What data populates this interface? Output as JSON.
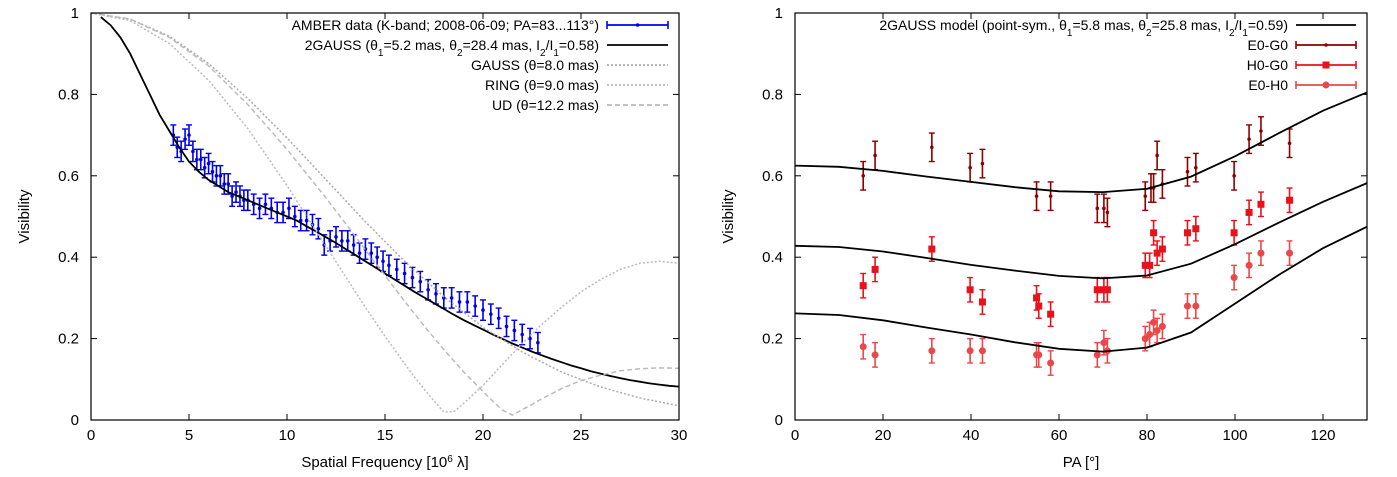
{
  "chart_data": [
    {
      "type": "scatter",
      "xlabel_main": "Spatial Frequency [10",
      "xlabel_sup": "6",
      "xlabel_rest": " λ]",
      "ylabel": "Visibility",
      "xlim": [
        0,
        30
      ],
      "ylim": [
        0,
        1
      ],
      "xticks": [
        0,
        5,
        10,
        15,
        20,
        25,
        30
      ],
      "yticks": [
        0,
        0.2,
        0.4,
        0.6,
        0.8,
        1
      ],
      "ytick_labels": [
        "0",
        "0.2",
        "0.4",
        "0.6",
        "0.8",
        "1"
      ],
      "legend_position": "top-right",
      "legend": [
        {
          "label": "AMBER data (K-band; 2008-06-09; PA=83...113°)",
          "color": "#0000ee",
          "style": "errorbar"
        },
        {
          "label": "2GAUSS (θ1=5.2 mas, θ2=28.4 mas, I2/I1=0.58)",
          "color": "#000000",
          "style": "solid"
        },
        {
          "label": "GAUSS (θ=8.0 mas)",
          "color": "#aaaaaa",
          "style": "dotted"
        },
        {
          "label": "RING (θ=9.0 mas)",
          "color": "#bbbbbb",
          "style": "dotted"
        },
        {
          "label": "UD (θ=12.2 mas)",
          "color": "#bbbbbb",
          "style": "dashed"
        }
      ],
      "series": [
        {
          "name": "AMBER data (K-band; 2008-06-09; PA=83...113°)",
          "x": [
            4.2,
            4.4,
            4.6,
            4.8,
            5.0,
            5.2,
            5.4,
            5.6,
            5.8,
            6.0,
            6.2,
            6.4,
            6.6,
            6.8,
            7.0,
            7.2,
            7.4,
            7.6,
            7.8,
            8.0,
            8.3,
            8.6,
            8.9,
            9.2,
            9.5,
            9.8,
            10.1,
            10.4,
            10.7,
            11.0,
            11.3,
            11.6,
            11.9,
            12.2,
            12.5,
            12.8,
            13.1,
            13.4,
            13.7,
            14.0,
            14.3,
            14.6,
            14.9,
            15.2,
            15.6,
            16.0,
            16.4,
            16.8,
            17.2,
            17.6,
            18.0,
            18.4,
            18.8,
            19.2,
            19.6,
            20.0,
            20.4,
            20.8,
            21.2,
            21.6,
            22.0,
            22.4,
            22.8
          ],
          "y": [
            0.7,
            0.67,
            0.66,
            0.69,
            0.7,
            0.66,
            0.64,
            0.64,
            0.62,
            0.63,
            0.61,
            0.6,
            0.6,
            0.58,
            0.58,
            0.55,
            0.56,
            0.55,
            0.54,
            0.54,
            0.53,
            0.52,
            0.53,
            0.52,
            0.51,
            0.51,
            0.52,
            0.5,
            0.49,
            0.49,
            0.48,
            0.47,
            0.43,
            0.44,
            0.45,
            0.44,
            0.44,
            0.43,
            0.41,
            0.42,
            0.41,
            0.4,
            0.39,
            0.38,
            0.37,
            0.36,
            0.35,
            0.34,
            0.32,
            0.31,
            0.3,
            0.3,
            0.29,
            0.29,
            0.28,
            0.27,
            0.26,
            0.25,
            0.23,
            0.22,
            0.21,
            0.2,
            0.19
          ],
          "err": 0.025,
          "color": "#0000ee"
        },
        {
          "name": "2GAUSS (θ1=5.2 mas, θ2=28.4 mas, I2/I1=0.58)",
          "x": [
            0.5,
            1,
            1.5,
            2,
            2.5,
            3,
            3.5,
            4,
            4.5,
            5,
            5.5,
            6,
            6.5,
            7,
            7.5,
            8,
            8.5,
            9,
            9.5,
            10,
            10.5,
            11,
            11.5,
            12,
            12.5,
            13,
            13.5,
            14,
            14.5,
            15,
            15.5,
            16,
            16.5,
            17,
            17.5,
            18,
            18.5,
            19,
            19.5,
            20,
            20.5,
            21,
            21.5,
            22,
            22.5,
            23,
            23.5,
            24,
            24.5,
            25,
            25.5,
            26,
            26.5,
            27,
            27.5,
            28,
            28.5,
            29,
            29.5,
            30
          ],
          "y": [
            0.99,
            0.97,
            0.94,
            0.9,
            0.85,
            0.8,
            0.75,
            0.71,
            0.67,
            0.635,
            0.61,
            0.59,
            0.575,
            0.56,
            0.55,
            0.54,
            0.53,
            0.52,
            0.51,
            0.5,
            0.49,
            0.476,
            0.463,
            0.449,
            0.435,
            0.42,
            0.405,
            0.39,
            0.375,
            0.36,
            0.345,
            0.33,
            0.315,
            0.301,
            0.287,
            0.273,
            0.259,
            0.246,
            0.234,
            0.222,
            0.21,
            0.199,
            0.188,
            0.178,
            0.168,
            0.159,
            0.15,
            0.142,
            0.134,
            0.127,
            0.12,
            0.114,
            0.108,
            0.103,
            0.098,
            0.094,
            0.09,
            0.087,
            0.084,
            0.082
          ],
          "color": "#000000"
        },
        {
          "name": "GAUSS (θ=8.0 mas)",
          "x": [
            0,
            2,
            4,
            6,
            8,
            10,
            12,
            14,
            16,
            18,
            20,
            22,
            24,
            26,
            28,
            30
          ],
          "y": [
            1.0,
            0.985,
            0.943,
            0.876,
            0.79,
            0.693,
            0.59,
            0.487,
            0.39,
            0.303,
            0.228,
            0.167,
            0.118,
            0.081,
            0.054,
            0.035
          ],
          "color": "#aaaaaa"
        },
        {
          "name": "RING (θ=9.0 mas)",
          "x": [
            0,
            2,
            4,
            6,
            8,
            10,
            12,
            14,
            15,
            16,
            16.5,
            17,
            17.3,
            17.6,
            18,
            18.5,
            19,
            20,
            21,
            22,
            23,
            24,
            25,
            26,
            27,
            28,
            29,
            30
          ],
          "y": [
            1.0,
            0.981,
            0.925,
            0.835,
            0.716,
            0.576,
            0.426,
            0.277,
            0.206,
            0.138,
            0.106,
            0.076,
            0.058,
            0.041,
            0.02,
            0.02,
            0.04,
            0.085,
            0.137,
            0.188,
            0.235,
            0.277,
            0.315,
            0.345,
            0.37,
            0.385,
            0.39,
            0.385
          ],
          "color": "#bbbbbb"
        },
        {
          "name": "UD (θ=12.2 mas)",
          "x": [
            0,
            2,
            4,
            6,
            8,
            10,
            12,
            13,
            14,
            15,
            16,
            17,
            18,
            19,
            20,
            20.5,
            21,
            21.5,
            22,
            23,
            24,
            25,
            26,
            27,
            28,
            29,
            30
          ],
          "y": [
            1.0,
            0.985,
            0.94,
            0.87,
            0.775,
            0.665,
            0.545,
            0.482,
            0.418,
            0.355,
            0.292,
            0.231,
            0.173,
            0.119,
            0.07,
            0.046,
            0.024,
            0.012,
            0.025,
            0.052,
            0.077,
            0.097,
            0.11,
            0.121,
            0.126,
            0.128,
            0.127
          ],
          "color": "#bbbbbb"
        }
      ]
    },
    {
      "type": "scatter",
      "xlabel": "PA [°]",
      "ylabel": "Visibility",
      "xlim": [
        0,
        130
      ],
      "ylim": [
        0,
        1
      ],
      "xticks": [
        0,
        20,
        40,
        60,
        80,
        100,
        120
      ],
      "yticks": [
        0,
        0.2,
        0.4,
        0.6,
        0.8,
        1
      ],
      "ytick_labels": [
        "0",
        "0.2",
        "0.4",
        "0.6",
        "0.8",
        "1"
      ],
      "legend_position": "top-right",
      "legend": [
        {
          "label": "2GAUSS model (point-sym., θ1=5.8 mas, θ2=25.8 mas, I2/I1=0.59)",
          "color": "#000000",
          "style": "solid"
        },
        {
          "label": "E0-G0",
          "color": "#8b0000",
          "style": "errorbar-dot"
        },
        {
          "label": "H0-G0",
          "color": "#e8121a",
          "style": "errorbar-square"
        },
        {
          "label": "E0-H0",
          "color": "#ea4848",
          "style": "errorbar-circle"
        }
      ],
      "series": [
        {
          "name": "E0-G0",
          "x": [
            15.5,
            18.2,
            31.1,
            39.8,
            42.6,
            54.9,
            58.1,
            68.7,
            70.2,
            71.0,
            79.6,
            80.9,
            81.5,
            82.3,
            83.5,
            89.2,
            91.1,
            99.8,
            103.2,
            105.9,
            112.4
          ],
          "y": [
            0.6,
            0.65,
            0.67,
            0.62,
            0.63,
            0.55,
            0.55,
            0.52,
            0.52,
            0.51,
            0.55,
            0.57,
            0.57,
            0.65,
            0.58,
            0.61,
            0.62,
            0.6,
            0.69,
            0.71,
            0.68
          ],
          "err": 0.035,
          "color": "#8b0000",
          "marker": "dot"
        },
        {
          "name": "H0-G0",
          "x": [
            15.5,
            18.2,
            31.1,
            39.8,
            42.6,
            54.9,
            55.4,
            58.1,
            68.7,
            70.2,
            71.0,
            79.6,
            80.6,
            81.5,
            82.3,
            83.5,
            89.2,
            91.1,
            99.8,
            103.2,
            105.9,
            112.4
          ],
          "y": [
            0.33,
            0.37,
            0.42,
            0.32,
            0.29,
            0.3,
            0.28,
            0.26,
            0.32,
            0.32,
            0.32,
            0.38,
            0.38,
            0.46,
            0.41,
            0.42,
            0.46,
            0.47,
            0.46,
            0.51,
            0.53,
            0.54
          ],
          "err": 0.03,
          "color": "#e8121a",
          "marker": "square"
        },
        {
          "name": "E0-H0",
          "x": [
            15.5,
            18.2,
            31.1,
            39.8,
            42.6,
            54.9,
            55.4,
            58.1,
            68.7,
            70.2,
            71.0,
            79.6,
            80.6,
            81.5,
            82.3,
            83.5,
            89.2,
            91.1,
            99.8,
            103.2,
            105.9,
            112.4
          ],
          "y": [
            0.18,
            0.16,
            0.17,
            0.17,
            0.17,
            0.16,
            0.16,
            0.14,
            0.16,
            0.19,
            0.17,
            0.2,
            0.21,
            0.24,
            0.22,
            0.23,
            0.28,
            0.28,
            0.35,
            0.38,
            0.41,
            0.41
          ],
          "err": 0.03,
          "color": "#ea4848",
          "marker": "circle"
        },
        {
          "name": "2GAUSS model (point-sym., θ1=5.8 mas, θ2=25.8 mas, I2/I1=0.59)",
          "x": [
            0,
            10,
            20,
            30,
            40,
            50,
            60,
            70,
            80,
            90,
            100,
            110,
            120,
            130
          ],
          "y": [
            0.625,
            0.622,
            0.612,
            0.598,
            0.585,
            0.572,
            0.562,
            0.56,
            0.568,
            0.598,
            0.648,
            0.705,
            0.76,
            0.805
          ],
          "color": "#000000"
        },
        {
          "name": "2GAUSS model (point-sym., θ1=5.8 mas, θ2=25.8 mas, I2/I1=0.59)",
          "x": [
            0,
            10,
            20,
            30,
            40,
            50,
            60,
            70,
            80,
            90,
            100,
            110,
            120,
            130
          ],
          "y": [
            0.428,
            0.425,
            0.414,
            0.398,
            0.381,
            0.367,
            0.354,
            0.348,
            0.355,
            0.384,
            0.432,
            0.485,
            0.536,
            0.582
          ],
          "color": "#000000"
        },
        {
          "name": "2GAUSS model (point-sym., θ1=5.8 mas, θ2=25.8 mas, I2/I1=0.59)",
          "x": [
            0,
            10,
            20,
            30,
            40,
            50,
            60,
            70,
            80,
            90,
            100,
            110,
            120,
            130
          ],
          "y": [
            0.262,
            0.258,
            0.245,
            0.227,
            0.21,
            0.191,
            0.175,
            0.168,
            0.178,
            0.215,
            0.286,
            0.357,
            0.422,
            0.475
          ],
          "color": "#000000"
        }
      ]
    }
  ]
}
